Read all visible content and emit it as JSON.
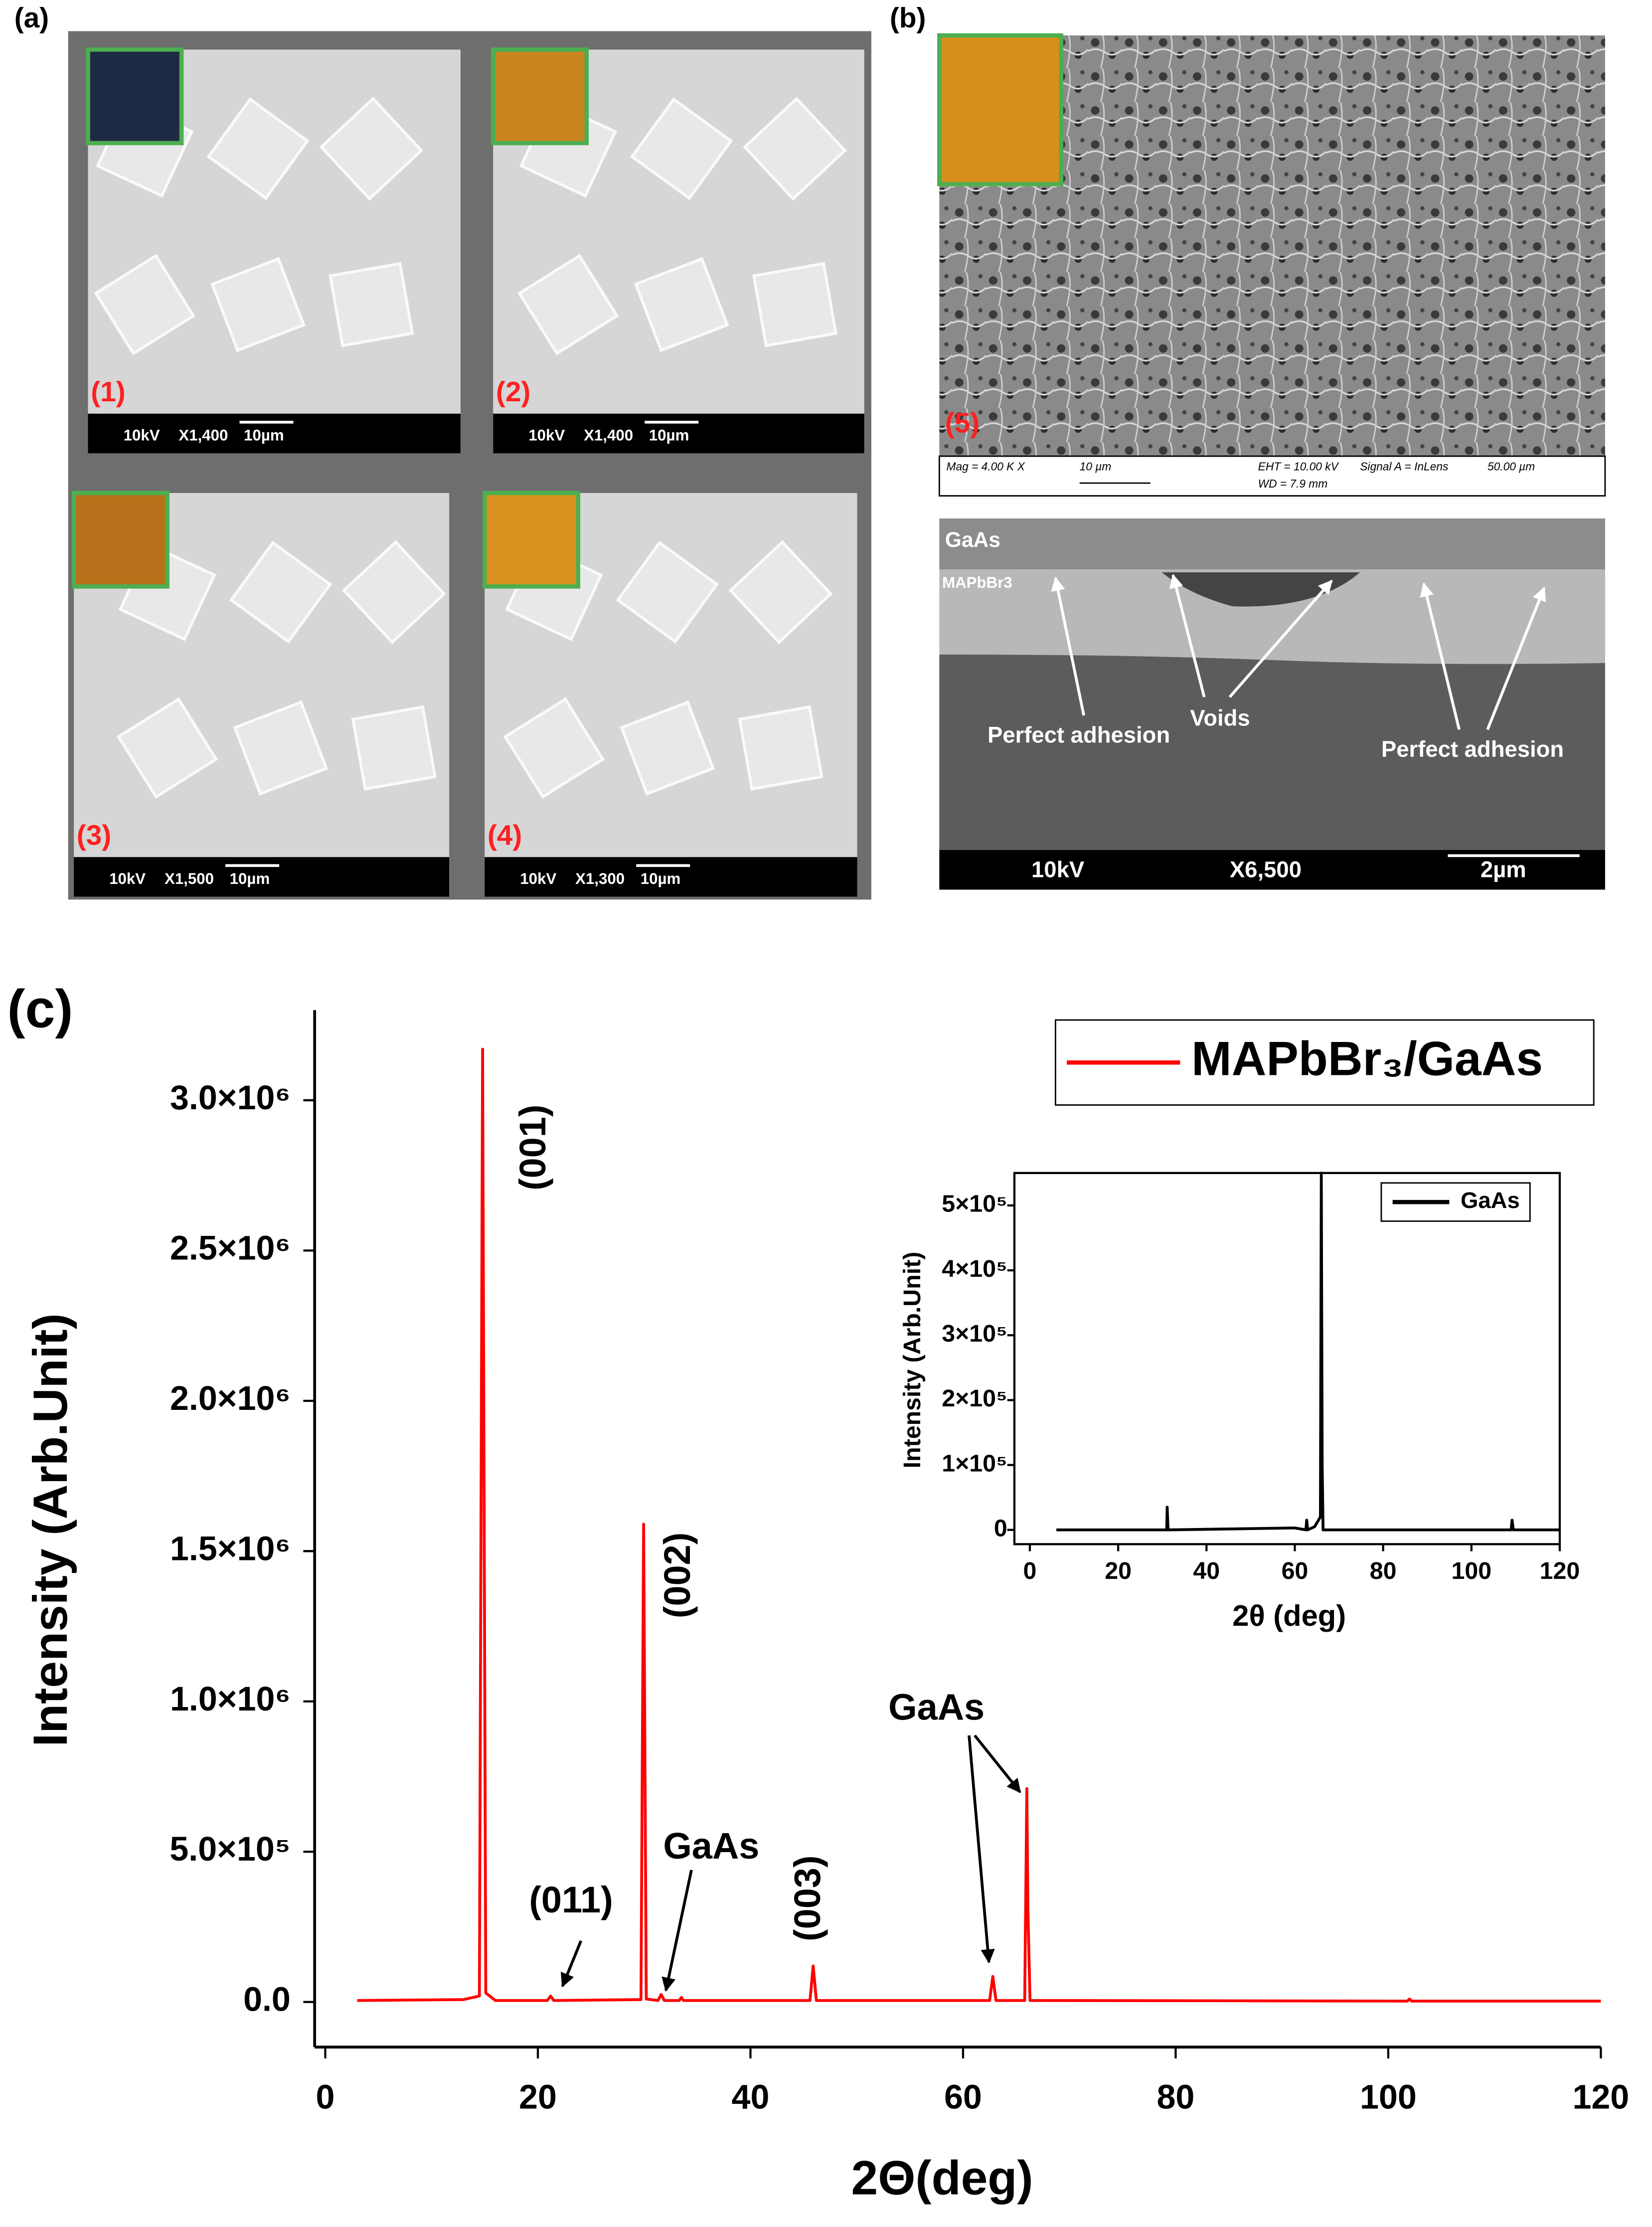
{
  "panel_labels": [
    "(a)",
    "(b)",
    "(c)"
  ],
  "sem_images": [
    {
      "label": "(1)",
      "bar": [
        "10kV",
        "X1,400",
        "10µm"
      ]
    },
    {
      "label": "(2)",
      "bar": [
        "10kV",
        "X1,400",
        "10µm"
      ]
    },
    {
      "label": "(3)",
      "bar": [
        "10kV",
        "X1,500",
        "10µm"
      ]
    },
    {
      "label": "(4)",
      "bar": [
        "10kV",
        "X1,300",
        "10µm"
      ]
    }
  ],
  "sem_surface": {
    "label": "(5)",
    "info": [
      "Mag = 4.00 K X",
      "10 µm",
      "EHT = 10.00 kV",
      "WD = 7.9 mm",
      "Signal A = InLens",
      "50.00 µm"
    ]
  },
  "sem_cross_section": {
    "labels": [
      "GaAs",
      "MAPbBr3",
      "Perfect adhesion",
      "Voids",
      "Perfect adhesion"
    ],
    "bar": [
      "10kV",
      "X6,500",
      "2µm"
    ]
  },
  "chart_data": [
    {
      "type": "line",
      "x_label": "2Θ(deg)",
      "y_label": "Intensity (Arb.Unit)",
      "x": [
        3,
        13,
        14.5,
        14.8,
        15.1,
        16,
        20.9,
        21.2,
        21.5,
        29.7,
        29.95,
        30.2,
        31.3,
        31.6,
        31.9,
        33.3,
        33.5,
        33.7,
        45.6,
        45.9,
        46.2,
        62.5,
        62.8,
        63.1,
        65.8,
        66.0,
        66.1,
        66.3,
        101.8,
        102,
        102.2,
        120
      ],
      "series": [
        {
          "name": "MAPbBr₃/GaAs",
          "color": "#ff0000",
          "values": [
            5000,
            8000,
            20000,
            3170000,
            30000,
            5000,
            5000,
            20000,
            5000,
            8000,
            1590000,
            10000,
            5000,
            25000,
            5000,
            5000,
            15000,
            5000,
            5000,
            120000,
            5000,
            5000,
            85000,
            5000,
            5000,
            710000,
            310000,
            5000,
            3000,
            10000,
            3000,
            3000
          ]
        }
      ],
      "xlim": [
        -1,
        120
      ],
      "xticks": [
        0,
        20,
        40,
        60,
        80,
        100,
        120
      ],
      "ylim": [
        -150000,
        3300000
      ],
      "yticks": [
        {
          "value": 0,
          "label": "0.0"
        },
        {
          "value": 500000,
          "label": "5.0×10⁵"
        },
        {
          "value": 1000000,
          "label": "1.0×10⁶"
        },
        {
          "value": 1500000,
          "label": "1.5×10⁶"
        },
        {
          "value": 2000000,
          "label": "2.0×10⁶"
        },
        {
          "value": 2500000,
          "label": "2.5×10⁶"
        },
        {
          "value": 3000000,
          "label": "3.0×10⁶"
        }
      ],
      "grid": false,
      "legend": "upper right",
      "annotations": [
        "(001)",
        "(002)",
        "(011)",
        "GaAs",
        "(003)",
        "GaAs"
      ]
    },
    {
      "type": "line",
      "x_label": "2θ (deg)",
      "y_label": "Intensity (Arb.Unit)",
      "x": [
        6,
        31,
        31.1,
        31.3,
        60,
        62.5,
        62.7,
        62.9,
        64.5,
        65.8,
        66,
        66.2,
        66.4,
        109,
        109.2,
        109.5,
        120
      ],
      "series": [
        {
          "name": "GaAs",
          "color": "#000000",
          "values": [
            0,
            0,
            35000,
            0,
            3000,
            0,
            15000,
            0,
            5000,
            20000,
            550000,
            100000,
            0,
            0,
            15000,
            0,
            0
          ]
        }
      ],
      "xlim": [
        -3.5,
        120
      ],
      "xticks": [
        0,
        20,
        40,
        60,
        80,
        100,
        120
      ],
      "ylim": [
        -22000,
        550000
      ],
      "yticks": [
        0,
        {
          "value": 100000,
          "label": "1×10⁵"
        },
        {
          "value": 200000,
          "label": "2×10⁵"
        },
        {
          "value": 300000,
          "label": "3×10⁵"
        },
        {
          "value": 400000,
          "label": "4×10⁵"
        },
        {
          "value": 500000,
          "label": "5×10⁵"
        }
      ],
      "grid": false,
      "legend": "upper right"
    }
  ]
}
